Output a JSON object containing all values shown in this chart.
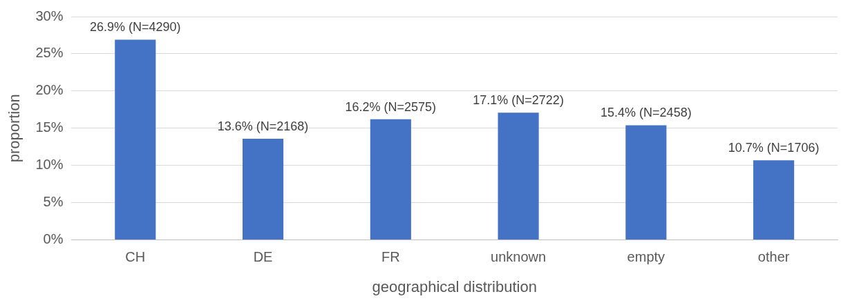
{
  "chart_data": {
    "type": "bar",
    "xlabel": "geographical distribution",
    "ylabel": "proportion",
    "categories": [
      "CH",
      "DE",
      "FR",
      "unknown",
      "empty",
      "other"
    ],
    "values": [
      26.9,
      13.6,
      16.2,
      17.1,
      15.4,
      10.7
    ],
    "value_labels": [
      "26.9% (N=4290)",
      "13.6% (N=2168)",
      "16.2% (N=2575)",
      "17.1% (N=2722)",
      "15.4% (N=2458)",
      "10.7% (N=1706)"
    ],
    "color": "#4472c4",
    "ylim": [
      0,
      30
    ],
    "yticks": [
      {
        "value": 0,
        "label": "0%"
      },
      {
        "value": 5,
        "label": "5%"
      },
      {
        "value": 10,
        "label": "10%"
      },
      {
        "value": 15,
        "label": "15%"
      },
      {
        "value": 20,
        "label": "20%"
      },
      {
        "value": 25,
        "label": "25%"
      },
      {
        "value": 30,
        "label": "30%"
      }
    ],
    "grid": "y",
    "legend": false
  }
}
